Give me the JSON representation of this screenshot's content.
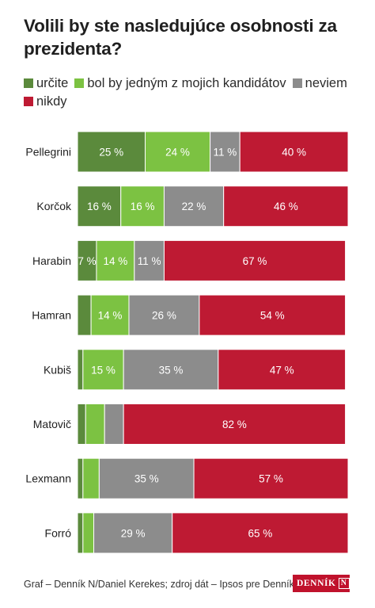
{
  "chart_data": {
    "type": "bar",
    "orientation": "horizontal",
    "stacked": true,
    "title": "Volili by ste nasledujúce osobnosti za prezidenta?",
    "categories": [
      "Pellegrini",
      "Korčok",
      "Harabin",
      "Hamran",
      "Kubiš",
      "Matovič",
      "Lexmann",
      "Forró"
    ],
    "series": [
      {
        "name": "určite",
        "color": "#5b8a3c",
        "values": [
          25,
          16,
          7,
          5,
          2,
          3,
          2,
          2
        ]
      },
      {
        "name": "bol by jedným z mojich kandidátov",
        "color": "#7cc242",
        "values": [
          24,
          16,
          14,
          14,
          15,
          7,
          6,
          4
        ]
      },
      {
        "name": "neviem",
        "color": "#8c8c8c",
        "values": [
          11,
          22,
          11,
          26,
          35,
          7,
          35,
          29
        ]
      },
      {
        "name": "nikdy",
        "color": "#be1a33",
        "values": [
          40,
          46,
          67,
          54,
          47,
          82,
          57,
          65
        ]
      }
    ],
    "data_labels": [
      [
        "25 %",
        "24 %",
        "11 %",
        "40 %"
      ],
      [
        "16 %",
        "16 %",
        "22 %",
        "46 %"
      ],
      [
        "7 %",
        "14 %",
        "11 %",
        "67 %"
      ],
      [
        "",
        "14 %",
        "26 %",
        "54 %"
      ],
      [
        "",
        "15 %",
        "35 %",
        "47 %"
      ],
      [
        "",
        "",
        "",
        "82 %"
      ],
      [
        "",
        "",
        "35 %",
        "57 %"
      ],
      [
        "",
        "",
        "29 %",
        "65 %"
      ]
    ],
    "xlim": [
      0,
      100
    ],
    "grid": false,
    "legend_position": "top"
  },
  "footer": {
    "credit": "Graf – Denník N/Daniel Kerekes; zdroj dát – Ipsos pre Denník N",
    "brand": "DENNÍK",
    "brand_mark": "N"
  }
}
